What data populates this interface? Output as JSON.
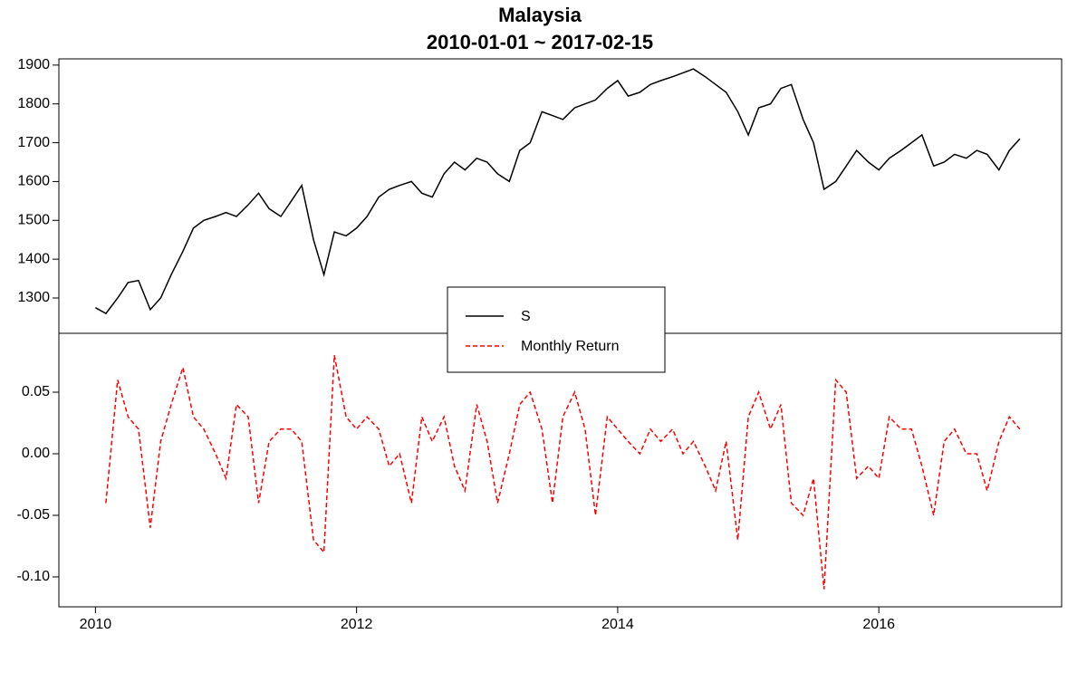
{
  "chart_data": [
    {
      "type": "line",
      "title": "Malaysia",
      "subtitle": "2010-01-01 ~ 2017-02-15",
      "x": [
        2010,
        2010.08,
        2010.17,
        2010.25,
        2010.33,
        2010.42,
        2010.5,
        2010.58,
        2010.67,
        2010.75,
        2010.83,
        2010.92,
        2011,
        2011.08,
        2011.17,
        2011.25,
        2011.33,
        2011.42,
        2011.5,
        2011.58,
        2011.67,
        2011.75,
        2011.83,
        2011.92,
        2012,
        2012.08,
        2012.17,
        2012.25,
        2012.33,
        2012.42,
        2012.5,
        2012.58,
        2012.67,
        2012.75,
        2012.83,
        2012.92,
        2013,
        2013.08,
        2013.17,
        2013.25,
        2013.33,
        2013.42,
        2013.5,
        2013.58,
        2013.67,
        2013.75,
        2013.83,
        2013.92,
        2014,
        2014.08,
        2014.17,
        2014.25,
        2014.33,
        2014.42,
        2014.5,
        2014.58,
        2014.67,
        2014.75,
        2014.83,
        2014.92,
        2015,
        2015.08,
        2015.17,
        2015.25,
        2015.33,
        2015.42,
        2015.5,
        2015.58,
        2015.67,
        2015.75,
        2015.83,
        2015.92,
        2016,
        2016.08,
        2016.17,
        2016.25,
        2016.33,
        2016.42,
        2016.5,
        2016.58,
        2016.67,
        2016.75,
        2016.83,
        2016.92,
        2017,
        2017.08
      ],
      "series": [
        {
          "name": "S",
          "color": "#000000",
          "dash": false,
          "values": [
            1275,
            1260,
            1300,
            1340,
            1345,
            1270,
            1300,
            1360,
            1420,
            1480,
            1500,
            1510,
            1520,
            1510,
            1540,
            1570,
            1530,
            1510,
            1550,
            1590,
            1450,
            1360,
            1470,
            1460,
            1480,
            1510,
            1560,
            1580,
            1590,
            1600,
            1570,
            1560,
            1620,
            1650,
            1630,
            1660,
            1650,
            1620,
            1600,
            1680,
            1700,
            1780,
            1770,
            1760,
            1790,
            1800,
            1810,
            1840,
            1860,
            1820,
            1830,
            1850,
            1860,
            1870,
            1880,
            1890,
            1870,
            1850,
            1830,
            1780,
            1720,
            1790,
            1800,
            1840,
            1850,
            1760,
            1700,
            1580,
            1600,
            1640,
            1680,
            1650,
            1630,
            1660,
            1680,
            1700,
            1720,
            1640,
            1650,
            1670,
            1660,
            1680,
            1670,
            1630,
            1680,
            1710
          ]
        }
      ],
      "xlim": [
        2009.72,
        2017.4
      ],
      "ylim": [
        1209,
        1916
      ],
      "yticks": [
        1300,
        1400,
        1500,
        1600,
        1700,
        1800,
        1900
      ]
    },
    {
      "type": "line",
      "x": [
        2010,
        2010.08,
        2010.17,
        2010.25,
        2010.33,
        2010.42,
        2010.5,
        2010.58,
        2010.67,
        2010.75,
        2010.83,
        2010.92,
        2011,
        2011.08,
        2011.17,
        2011.25,
        2011.33,
        2011.42,
        2011.5,
        2011.58,
        2011.67,
        2011.75,
        2011.83,
        2011.92,
        2012,
        2012.08,
        2012.17,
        2012.25,
        2012.33,
        2012.42,
        2012.5,
        2012.58,
        2012.67,
        2012.75,
        2012.83,
        2012.92,
        2013,
        2013.08,
        2013.17,
        2013.25,
        2013.33,
        2013.42,
        2013.5,
        2013.58,
        2013.67,
        2013.75,
        2013.83,
        2013.92,
        2014,
        2014.08,
        2014.17,
        2014.25,
        2014.33,
        2014.42,
        2014.5,
        2014.58,
        2014.67,
        2014.75,
        2014.83,
        2014.92,
        2015,
        2015.08,
        2015.17,
        2015.25,
        2015.33,
        2015.42,
        2015.5,
        2015.58,
        2015.67,
        2015.75,
        2015.83,
        2015.92,
        2016,
        2016.08,
        2016.17,
        2016.25,
        2016.33,
        2016.42,
        2016.5,
        2016.58,
        2016.67,
        2016.75,
        2016.83,
        2016.92,
        2017,
        2017.08
      ],
      "series": [
        {
          "name": "Monthly Return",
          "color": "#ff0000",
          "dash": true,
          "values": [
            null,
            -0.04,
            0.06,
            0.03,
            0.02,
            -0.06,
            0.01,
            0.04,
            0.07,
            0.03,
            0.02,
            0.0,
            -0.02,
            0.04,
            0.03,
            -0.04,
            0.01,
            0.02,
            0.02,
            0.01,
            -0.07,
            -0.08,
            0.08,
            0.03,
            0.02,
            0.03,
            0.02,
            -0.01,
            0.0,
            -0.04,
            0.03,
            0.01,
            0.03,
            -0.01,
            -0.03,
            0.04,
            0.01,
            -0.04,
            0.0,
            0.04,
            0.05,
            0.02,
            -0.04,
            0.03,
            0.05,
            0.02,
            -0.05,
            0.03,
            0.02,
            0.01,
            0.0,
            0.02,
            0.01,
            0.02,
            0.0,
            0.01,
            -0.01,
            -0.03,
            0.01,
            -0.07,
            0.03,
            0.05,
            0.02,
            0.04,
            -0.04,
            -0.05,
            -0.02,
            -0.11,
            0.06,
            0.05,
            -0.02,
            -0.01,
            -0.02,
            0.03,
            0.02,
            0.02,
            -0.01,
            -0.05,
            0.01,
            0.02,
            0.0,
            0.0,
            -0.03,
            0.01,
            0.03,
            0.02
          ]
        }
      ],
      "xlim": [
        2009.72,
        2017.4
      ],
      "ylim": [
        -0.1243,
        0.0978
      ],
      "yticks": [
        {
          "value": -0.1,
          "label": "-0.10"
        },
        {
          "value": -0.05,
          "label": "-0.05"
        },
        {
          "value": 0,
          "label": "0.00"
        },
        {
          "value": 0.05,
          "label": "0.05"
        }
      ],
      "xticks": [
        2010,
        2012,
        2014,
        2016
      ]
    }
  ]
}
